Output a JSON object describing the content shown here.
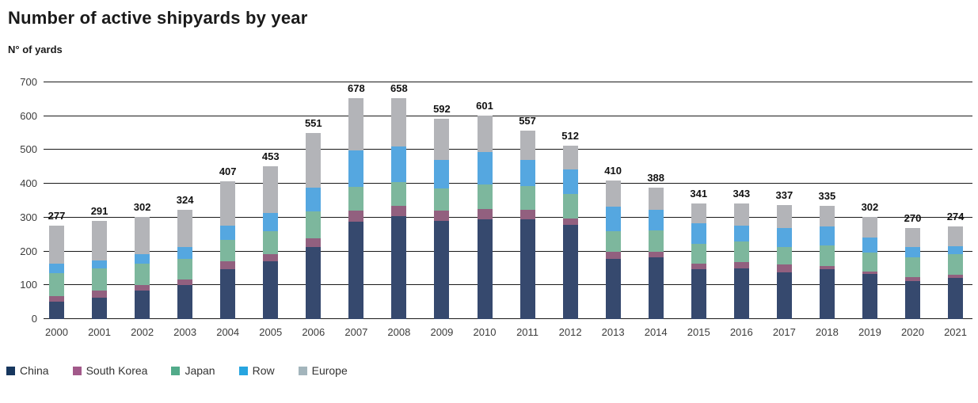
{
  "header": {
    "title": "Number of active shipyards by year",
    "subtitle": "N° of yards"
  },
  "chart_data": {
    "type": "bar",
    "variant": "stacked-vertical",
    "title": "Number of active shipyards by year",
    "ylabel": "N° of yards",
    "xlabel": "",
    "ylim": [
      0,
      700
    ],
    "yticks": [
      0,
      100,
      200,
      300,
      400,
      500,
      600,
      700
    ],
    "grid": "horizontal-dark-lines",
    "legend_position": "bottom-left",
    "categories": [
      "2000",
      "2001",
      "2002",
      "2003",
      "2004",
      "2005",
      "2006",
      "2007",
      "2008",
      "2009",
      "2010",
      "2011",
      "2012",
      "2013",
      "2014",
      "2015",
      "2016",
      "2017",
      "2018",
      "2019",
      "2020",
      "2021"
    ],
    "totals": [
      277,
      291,
      302,
      324,
      407,
      453,
      551,
      678,
      658,
      592,
      601,
      557,
      512,
      410,
      388,
      341,
      343,
      337,
      335,
      302,
      270,
      274
    ],
    "series": [
      {
        "name": "China",
        "color": "#36496e",
        "legend_color": "#17375e",
        "values": [
          51,
          63,
          85,
          100,
          148,
          170,
          213,
          300,
          306,
          290,
          296,
          296,
          278,
          179,
          182,
          147,
          150,
          138,
          148,
          133,
          113,
          121
        ]
      },
      {
        "name": "South Korea",
        "color": "#92607f",
        "legend_color": "#a2598a",
        "values": [
          17,
          21,
          15,
          18,
          23,
          21,
          27,
          33,
          31,
          31,
          30,
          26,
          20,
          21,
          16,
          17,
          18,
          23,
          10,
          8,
          12,
          10
        ]
      },
      {
        "name": "Japan",
        "color": "#7db79d",
        "legend_color": "#52ab8a",
        "values": [
          68,
          67,
          64,
          59,
          64,
          68,
          78,
          73,
          70,
          66,
          73,
          72,
          71,
          61,
          64,
          58,
          62,
          53,
          60,
          55,
          58,
          60
        ]
      },
      {
        "name": "Row",
        "color": "#55a7e0",
        "legend_color": "#27a5e0",
        "values": [
          27,
          22,
          28,
          35,
          41,
          55,
          70,
          112,
          106,
          83,
          94,
          76,
          74,
          72,
          60,
          62,
          47,
          55,
          55,
          45,
          30,
          25
        ]
      },
      {
        "name": "Europe",
        "color": "#b3b4b8",
        "legend_color": "#a3b5bc",
        "values": [
          114,
          118,
          110,
          112,
          131,
          139,
          163,
          160,
          145,
          122,
          108,
          87,
          69,
          77,
          66,
          57,
          66,
          68,
          62,
          61,
          57,
          58
        ]
      }
    ]
  }
}
